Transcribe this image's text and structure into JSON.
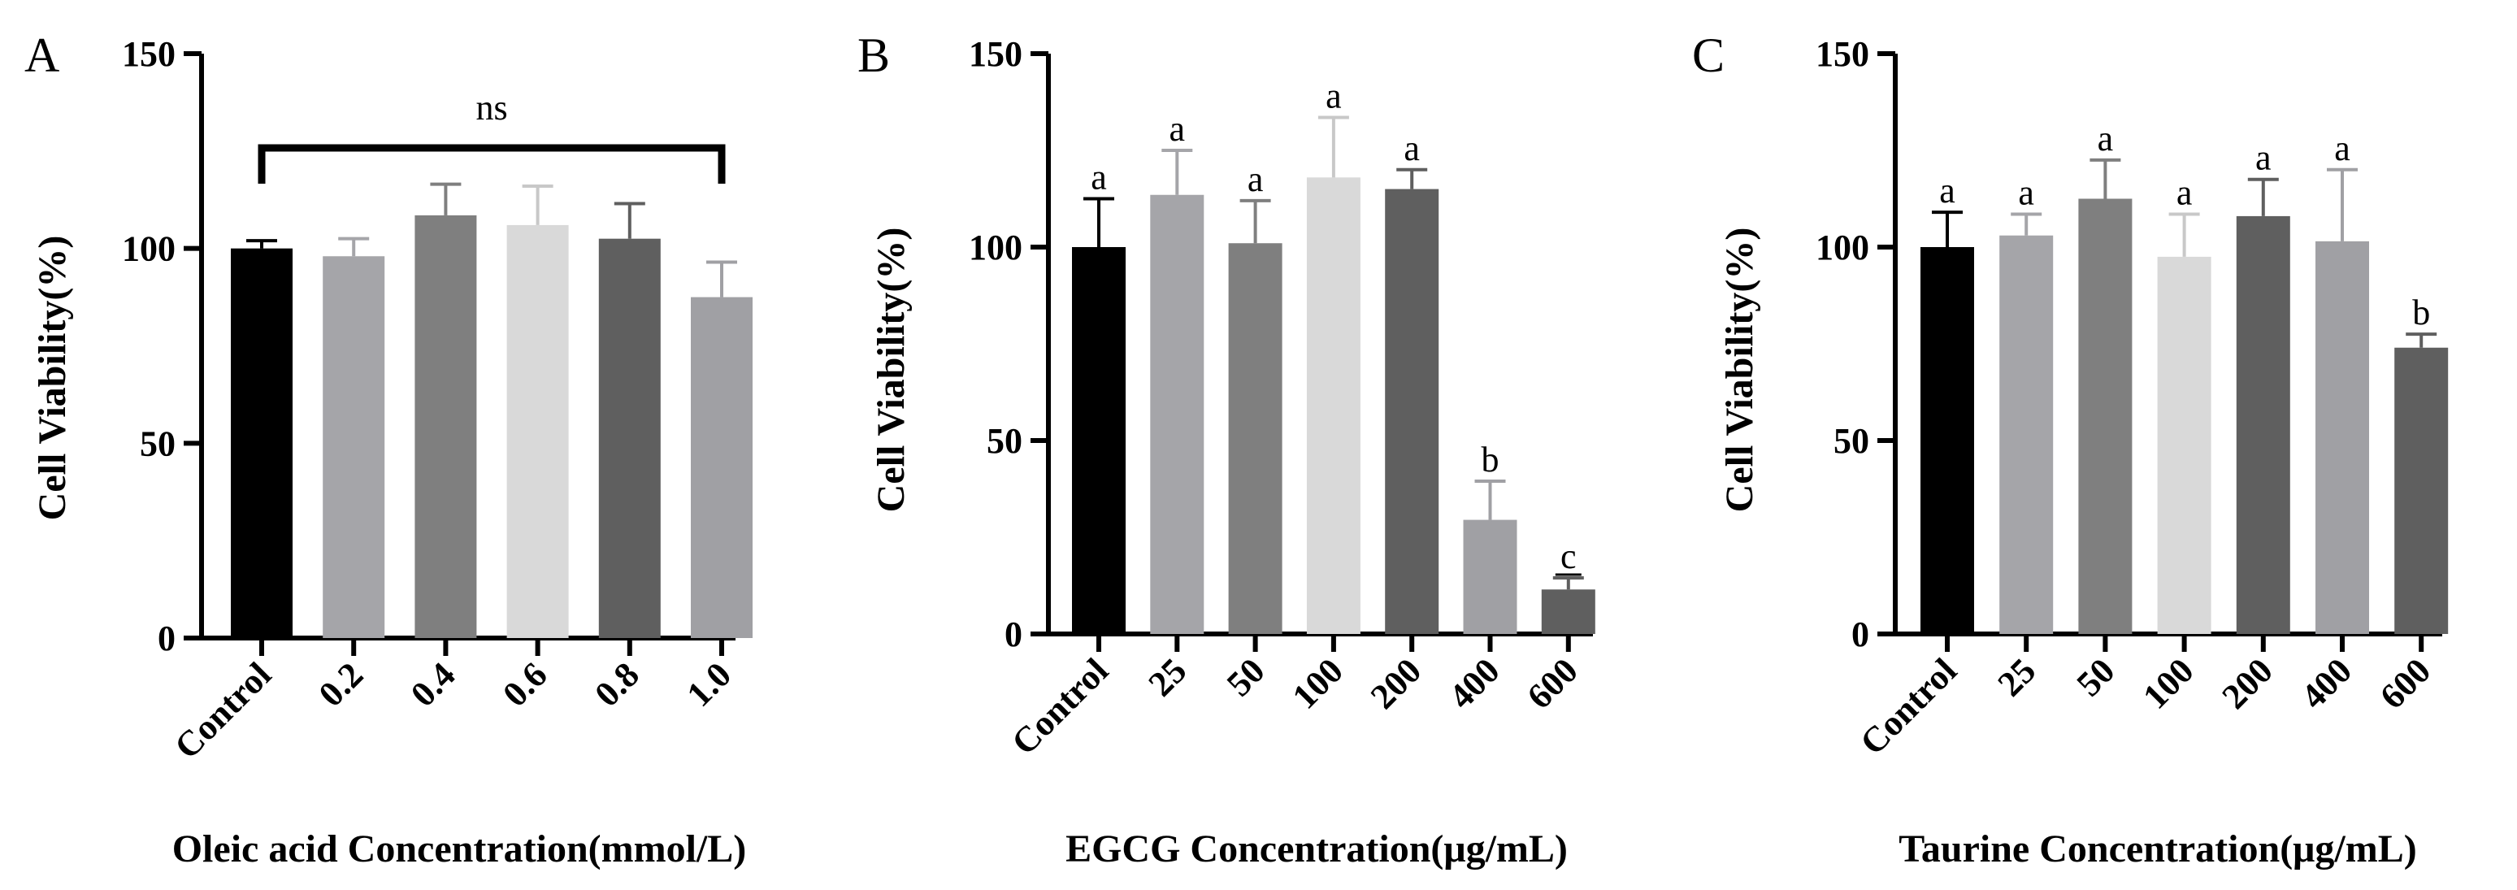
{
  "chart_data": [
    {
      "type": "bar",
      "panel": "A",
      "ylabel": "Cell Viability(%)",
      "xlabel": "Oleic acid Concentration(mmol/L)",
      "ylim": [
        0,
        150
      ],
      "yticks": [
        "0",
        "50",
        "100",
        "150"
      ],
      "categories": [
        "Control",
        "0.2",
        "0.4",
        "0.6",
        "0.8",
        "1.0"
      ],
      "values": [
        100,
        98,
        108.5,
        106,
        102.5,
        87.5
      ],
      "errors": [
        2,
        4.5,
        8,
        10,
        9,
        9
      ],
      "colors": [
        "#000000",
        "#a5a5a9",
        "#7f7f7f",
        "#d9d9d9",
        "#5f5f5f",
        "#a0a0a4"
      ],
      "bracket_label": "ns",
      "labels": []
    },
    {
      "type": "bar",
      "panel": "B",
      "ylabel": "Cell Viability(%)",
      "xlabel": "EGCG Concentration(μg/mL)",
      "ylim": [
        0,
        150
      ],
      "yticks": [
        "0",
        "50",
        "100",
        "150"
      ],
      "categories": [
        "Control",
        "25",
        "50",
        "100",
        "200",
        "400",
        "600"
      ],
      "values": [
        100,
        113.5,
        101,
        118,
        115,
        29.5,
        11.5
      ],
      "errors": [
        12.5,
        11.5,
        11,
        15.5,
        5,
        10,
        3
      ],
      "colors": [
        "#000000",
        "#a5a5a9",
        "#7f7f7f",
        "#d9d9d9",
        "#5f5f5f",
        "#a0a0a4",
        "#5f5f5f"
      ],
      "labels": [
        "a",
        "a",
        "a",
        "a",
        "a",
        "b",
        "c"
      ]
    },
    {
      "type": "bar",
      "panel": "C",
      "ylabel": "Cell Viability(%)",
      "xlabel": "Taurine Concentration(μg/mL)",
      "ylim": [
        0,
        150
      ],
      "yticks": [
        "0",
        "50",
        "100",
        "150"
      ],
      "categories": [
        "Control",
        "25",
        "50",
        "100",
        "200",
        "400",
        "600"
      ],
      "values": [
        100,
        103,
        112.5,
        97.5,
        108,
        101.5,
        74
      ],
      "errors": [
        9,
        5.5,
        10,
        11,
        9.5,
        18.5,
        3.5
      ],
      "colors": [
        "#000000",
        "#a5a5a9",
        "#7f7f7f",
        "#d9d9d9",
        "#5f5f5f",
        "#a0a0a4",
        "#5f5f5f"
      ],
      "labels": [
        "a",
        "a",
        "a",
        "a",
        "a",
        "a",
        "b"
      ]
    }
  ]
}
